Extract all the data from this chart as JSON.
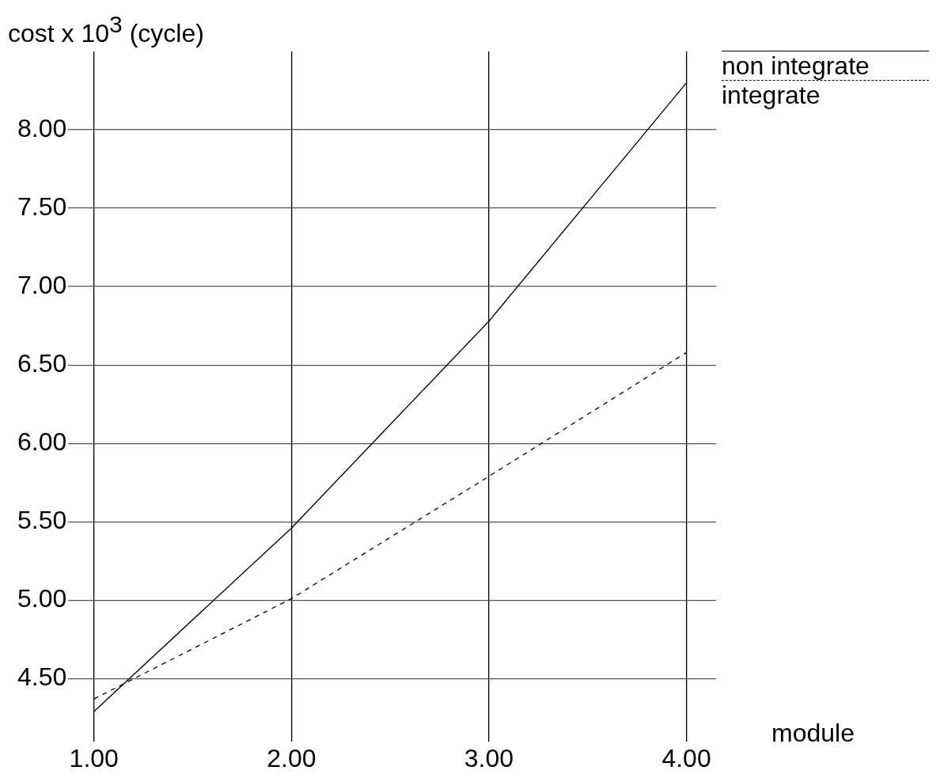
{
  "chart_data": {
    "type": "line",
    "xlabel": "module",
    "ylabel": "cost x 10$^{3}$ (cycle)",
    "x": [
      1,
      2,
      3,
      4
    ],
    "series": [
      {
        "name": "non integrate",
        "color": "#000000",
        "line_style": "solid",
        "values": [
          4.29,
          5.46,
          6.78,
          8.3
        ]
      },
      {
        "name": "integrate",
        "color": "#000000",
        "line_style": "dashed",
        "values": [
          4.37,
          5.01,
          5.79,
          6.58
        ]
      }
    ],
    "xlim": [
      0.87,
      4.15
    ],
    "xticks": [
      {
        "value": 1,
        "label": "1.00"
      },
      {
        "value": 2,
        "label": "2.00"
      },
      {
        "value": 3,
        "label": "3.00"
      },
      {
        "value": 4,
        "label": "4.00"
      }
    ],
    "ylim": [
      4.1,
      8.5
    ],
    "yticks": [
      {
        "value": 4.5,
        "label": "4.50"
      },
      {
        "value": 5,
        "label": "5.00"
      },
      {
        "value": 5.5,
        "label": "5.50"
      },
      {
        "value": 6,
        "label": "6.00"
      },
      {
        "value": 6.5,
        "label": "6.50"
      },
      {
        "value": 7,
        "label": "7.00"
      },
      {
        "value": 7.5,
        "label": "7.50"
      },
      {
        "value": 8,
        "label": "8.00"
      }
    ],
    "grid": true,
    "legend": "top right",
    "marker": "none"
  }
}
